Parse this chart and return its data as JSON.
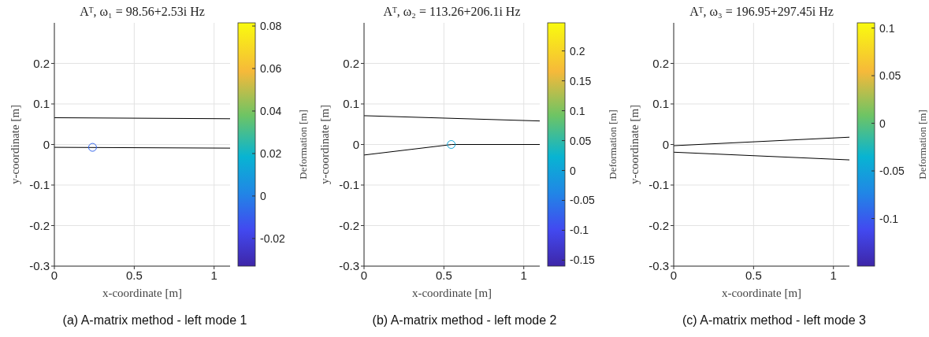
{
  "chart_data": [
    {
      "type": "line",
      "title": "Aᵀ, ω₁ = 98.56+2.53i Hz",
      "xlabel": "x-coordinate [m]",
      "ylabel": "y-coordinate [m]",
      "clabel": "Deformation [m]",
      "xlim": [
        0,
        1.1
      ],
      "xticks": [
        0,
        0.5,
        1
      ],
      "ylim": [
        -0.3,
        0.3
      ],
      "yticks": [
        -0.3,
        -0.2,
        -0.1,
        0,
        0.1,
        0.2
      ],
      "grid": true,
      "clim": [
        -0.033,
        0.0815
      ],
      "cticks": [
        -0.02,
        0,
        0.02,
        0.04,
        0.06,
        0.08
      ],
      "annotations": [
        "(a) A-matrix method - left mode 1"
      ],
      "series": [
        {
          "color": "#000000",
          "x": [
            0,
            1.1
          ],
          "values": [
            0.066,
            0.0635
          ]
        },
        {
          "color": "#000000",
          "x": [
            0,
            1.1
          ],
          "values": [
            -0.007,
            -0.009
          ]
        },
        {
          "type": "scatter",
          "marker": "circle",
          "x": [
            0.239
          ],
          "values": [
            -0.007
          ],
          "cvalues": [
            -0.008
          ]
        }
      ]
    },
    {
      "type": "line",
      "title": "Aᵀ, ω₂ = 113.26+206.1i Hz",
      "xlabel": "x-coordinate [m]",
      "ylabel": "y-coordinate [m]",
      "clabel": "Deformation [m]",
      "xlim": [
        0,
        1.1
      ],
      "xticks": [
        0,
        0.5,
        1
      ],
      "ylim": [
        -0.3,
        0.3
      ],
      "yticks": [
        -0.3,
        -0.2,
        -0.1,
        0,
        0.1,
        0.2
      ],
      "grid": true,
      "clim": [
        -0.16,
        0.247
      ],
      "cticks": [
        -0.15,
        -0.1,
        -0.05,
        0,
        0.05,
        0.1,
        0.15,
        0.2
      ],
      "annotations": [
        "(b) A-matrix method - left mode 2"
      ],
      "series": [
        {
          "color": "#000000",
          "x": [
            0,
            1.1
          ],
          "values": [
            0.071,
            0.058
          ]
        },
        {
          "color": "#000000",
          "x": [
            0,
            0.55,
            1.1
          ],
          "values": [
            -0.026,
            0,
            0
          ]
        },
        {
          "type": "scatter",
          "marker": "circle",
          "x": [
            0.546
          ],
          "values": [
            0
          ],
          "cvalues": [
            0.005
          ]
        }
      ]
    },
    {
      "type": "line",
      "title": "Aᵀ, ω₃ = 196.95+297.45i Hz",
      "xlabel": "x-coordinate [m]",
      "ylabel": "y-coordinate [m]",
      "clabel": "Deformation [m]",
      "xlim": [
        0,
        1.1
      ],
      "xticks": [
        0,
        0.5,
        1
      ],
      "ylim": [
        -0.3,
        0.3
      ],
      "yticks": [
        -0.3,
        -0.2,
        -0.1,
        0,
        0.1,
        0.2
      ],
      "grid": true,
      "clim": [
        -0.15,
        0.1055
      ],
      "cticks": [
        -0.1,
        -0.05,
        0,
        0.05,
        0.1
      ],
      "annotations": [
        "(c) A-matrix method - left mode 3"
      ],
      "series": [
        {
          "color": "#000000",
          "x": [
            0,
            1.1
          ],
          "values": [
            -0.003,
            0.018
          ]
        },
        {
          "color": "#000000",
          "x": [
            0,
            1.1
          ],
          "values": [
            -0.019,
            -0.038
          ]
        }
      ]
    }
  ]
}
